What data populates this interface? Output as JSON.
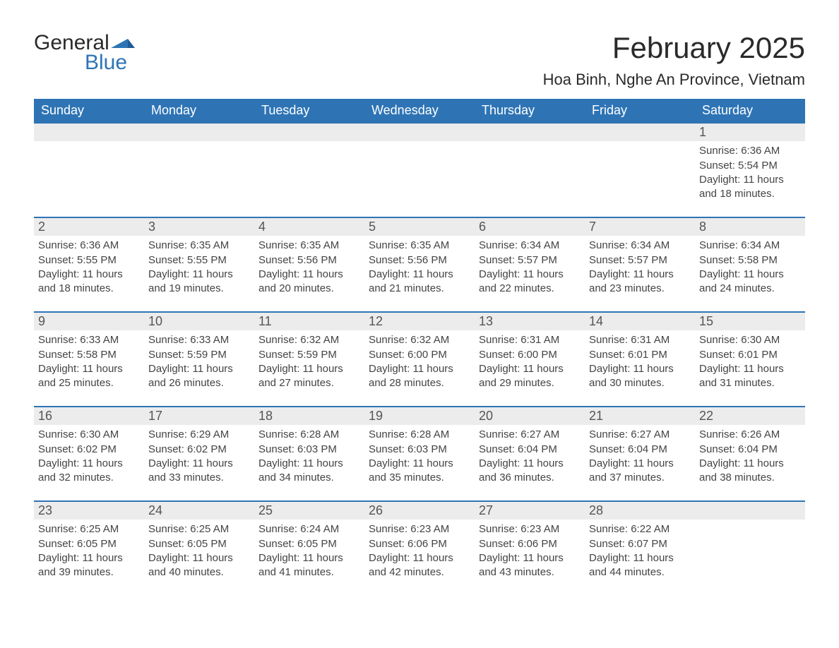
{
  "brand": {
    "word1": "General",
    "word2": "Blue",
    "brand_color": "#2e74b5"
  },
  "title": {
    "month": "February 2025",
    "location": "Hoa Binh, Nghe An Province, Vietnam"
  },
  "colors": {
    "header_bg": "#2e74b5",
    "header_fg": "#ffffff",
    "row_border": "#2e74b5",
    "daynum_bg": "#ececec",
    "text": "#333333"
  },
  "day_labels": [
    "Sunday",
    "Monday",
    "Tuesday",
    "Wednesday",
    "Thursday",
    "Friday",
    "Saturday"
  ],
  "first_weekday_index": 6,
  "days": [
    {
      "n": 1,
      "sunrise": "6:36 AM",
      "sunset": "5:54 PM",
      "daylight": "11 hours and 18 minutes."
    },
    {
      "n": 2,
      "sunrise": "6:36 AM",
      "sunset": "5:55 PM",
      "daylight": "11 hours and 18 minutes."
    },
    {
      "n": 3,
      "sunrise": "6:35 AM",
      "sunset": "5:55 PM",
      "daylight": "11 hours and 19 minutes."
    },
    {
      "n": 4,
      "sunrise": "6:35 AM",
      "sunset": "5:56 PM",
      "daylight": "11 hours and 20 minutes."
    },
    {
      "n": 5,
      "sunrise": "6:35 AM",
      "sunset": "5:56 PM",
      "daylight": "11 hours and 21 minutes."
    },
    {
      "n": 6,
      "sunrise": "6:34 AM",
      "sunset": "5:57 PM",
      "daylight": "11 hours and 22 minutes."
    },
    {
      "n": 7,
      "sunrise": "6:34 AM",
      "sunset": "5:57 PM",
      "daylight": "11 hours and 23 minutes."
    },
    {
      "n": 8,
      "sunrise": "6:34 AM",
      "sunset": "5:58 PM",
      "daylight": "11 hours and 24 minutes."
    },
    {
      "n": 9,
      "sunrise": "6:33 AM",
      "sunset": "5:58 PM",
      "daylight": "11 hours and 25 minutes."
    },
    {
      "n": 10,
      "sunrise": "6:33 AM",
      "sunset": "5:59 PM",
      "daylight": "11 hours and 26 minutes."
    },
    {
      "n": 11,
      "sunrise": "6:32 AM",
      "sunset": "5:59 PM",
      "daylight": "11 hours and 27 minutes."
    },
    {
      "n": 12,
      "sunrise": "6:32 AM",
      "sunset": "6:00 PM",
      "daylight": "11 hours and 28 minutes."
    },
    {
      "n": 13,
      "sunrise": "6:31 AM",
      "sunset": "6:00 PM",
      "daylight": "11 hours and 29 minutes."
    },
    {
      "n": 14,
      "sunrise": "6:31 AM",
      "sunset": "6:01 PM",
      "daylight": "11 hours and 30 minutes."
    },
    {
      "n": 15,
      "sunrise": "6:30 AM",
      "sunset": "6:01 PM",
      "daylight": "11 hours and 31 minutes."
    },
    {
      "n": 16,
      "sunrise": "6:30 AM",
      "sunset": "6:02 PM",
      "daylight": "11 hours and 32 minutes."
    },
    {
      "n": 17,
      "sunrise": "6:29 AM",
      "sunset": "6:02 PM",
      "daylight": "11 hours and 33 minutes."
    },
    {
      "n": 18,
      "sunrise": "6:28 AM",
      "sunset": "6:03 PM",
      "daylight": "11 hours and 34 minutes."
    },
    {
      "n": 19,
      "sunrise": "6:28 AM",
      "sunset": "6:03 PM",
      "daylight": "11 hours and 35 minutes."
    },
    {
      "n": 20,
      "sunrise": "6:27 AM",
      "sunset": "6:04 PM",
      "daylight": "11 hours and 36 minutes."
    },
    {
      "n": 21,
      "sunrise": "6:27 AM",
      "sunset": "6:04 PM",
      "daylight": "11 hours and 37 minutes."
    },
    {
      "n": 22,
      "sunrise": "6:26 AM",
      "sunset": "6:04 PM",
      "daylight": "11 hours and 38 minutes."
    },
    {
      "n": 23,
      "sunrise": "6:25 AM",
      "sunset": "6:05 PM",
      "daylight": "11 hours and 39 minutes."
    },
    {
      "n": 24,
      "sunrise": "6:25 AM",
      "sunset": "6:05 PM",
      "daylight": "11 hours and 40 minutes."
    },
    {
      "n": 25,
      "sunrise": "6:24 AM",
      "sunset": "6:05 PM",
      "daylight": "11 hours and 41 minutes."
    },
    {
      "n": 26,
      "sunrise": "6:23 AM",
      "sunset": "6:06 PM",
      "daylight": "11 hours and 42 minutes."
    },
    {
      "n": 27,
      "sunrise": "6:23 AM",
      "sunset": "6:06 PM",
      "daylight": "11 hours and 43 minutes."
    },
    {
      "n": 28,
      "sunrise": "6:22 AM",
      "sunset": "6:07 PM",
      "daylight": "11 hours and 44 minutes."
    }
  ],
  "labels": {
    "sunrise": "Sunrise:",
    "sunset": "Sunset:",
    "daylight": "Daylight:"
  }
}
